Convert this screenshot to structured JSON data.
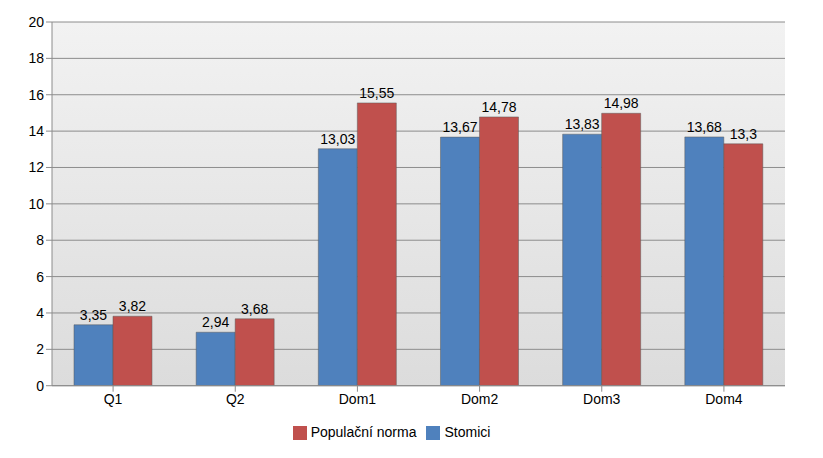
{
  "chart_data": {
    "type": "bar",
    "categories": [
      "Q1",
      "Q2",
      "Dom1",
      "Dom2",
      "Dom3",
      "Dom4"
    ],
    "series": [
      {
        "name": "Stomici",
        "color": "#4f81bd",
        "values": [
          3.35,
          2.94,
          13.03,
          13.67,
          13.83,
          13.68
        ],
        "value_labels": [
          "3,35",
          "2,94",
          "13,03",
          "13,67",
          "13,83",
          "13,68"
        ]
      },
      {
        "name": "Populační norma",
        "color": "#c0504d",
        "values": [
          3.82,
          3.68,
          15.55,
          14.78,
          14.98,
          13.3
        ],
        "value_labels": [
          "3,82",
          "3,68",
          "15,55",
          "14,78",
          "14,98",
          "13,3"
        ]
      }
    ],
    "ylim": [
      0,
      20
    ],
    "yticks": [
      0,
      2,
      4,
      6,
      8,
      10,
      12,
      14,
      16,
      18,
      20
    ],
    "grid": true,
    "legend": "bottom",
    "data_labels": true
  }
}
